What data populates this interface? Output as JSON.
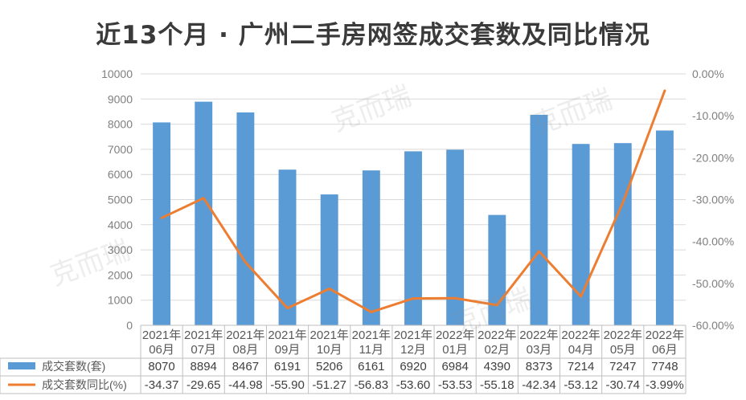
{
  "chart_data": {
    "type": "bar",
    "title": "近13个月 · 广州二手房网签成交套数及同比情况",
    "categories": [
      [
        "2021年",
        "06月"
      ],
      [
        "2021年",
        "07月"
      ],
      [
        "2021年",
        "08月"
      ],
      [
        "2021年",
        "09月"
      ],
      [
        "2021年",
        "10月"
      ],
      [
        "2021年",
        "11月"
      ],
      [
        "2021年",
        "12月"
      ],
      [
        "2022年",
        "01月"
      ],
      [
        "2022年",
        "02月"
      ],
      [
        "2022年",
        "03月"
      ],
      [
        "2022年",
        "04月"
      ],
      [
        "2022年",
        "05月"
      ],
      [
        "2022年",
        "06月"
      ]
    ],
    "series": [
      {
        "name": "成交套数(套)",
        "type": "bar",
        "axis": "left",
        "color": "#5b9bd5",
        "values": [
          8070,
          8894,
          8467,
          6191,
          5206,
          6161,
          6920,
          6984,
          4390,
          8373,
          7214,
          7247,
          7748
        ],
        "labels": [
          "8070",
          "8894",
          "8467",
          "6191",
          "5206",
          "6161",
          "6920",
          "6984",
          "4390",
          "8373",
          "7214",
          "7247",
          "7748"
        ]
      },
      {
        "name": "成交套数同比(%)",
        "type": "line",
        "axis": "right",
        "color": "#ed7d31",
        "values": [
          -34.37,
          -29.65,
          -44.98,
          -55.9,
          -51.27,
          -56.83,
          -53.6,
          -53.53,
          -55.18,
          -42.34,
          -53.12,
          -30.74,
          -3.99
        ],
        "labels": [
          "-34.37",
          "-29.65",
          "-44.98",
          "-55.90",
          "-51.27",
          "-56.83",
          "-53.60",
          "-53.53",
          "-55.18",
          "-42.34",
          "-53.12",
          "-30.74",
          "-3.99%"
        ]
      }
    ],
    "y_left": {
      "range": [
        0,
        10000
      ],
      "ticks": [
        "0",
        "1000",
        "2000",
        "3000",
        "4000",
        "5000",
        "6000",
        "7000",
        "8000",
        "9000",
        "10000"
      ]
    },
    "y_right": {
      "range": [
        -60,
        0
      ],
      "ticks": [
        "-60.00%",
        "-50.00%",
        "-40.00%",
        "-30.00%",
        "-20.00%",
        "-10.00%",
        "0.00%"
      ]
    },
    "grid": true,
    "legend": "data-table",
    "watermark": "克而瑞"
  }
}
